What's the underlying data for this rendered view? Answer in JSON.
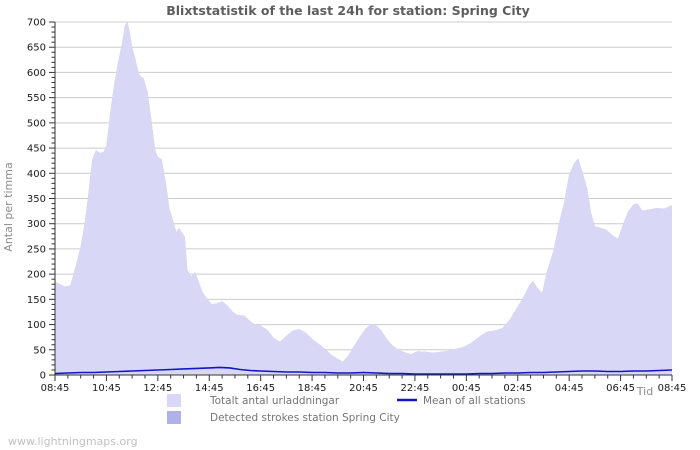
{
  "page": {
    "watermark": "www.lightningmaps.org"
  },
  "chart_data": {
    "type": "area",
    "title": "Blixtstatistik of the last 24h for station: Spring City",
    "xlabel": "Tid",
    "ylabel": "Antal per timma",
    "ylim": [
      0,
      700
    ],
    "y_tick_step": 50,
    "y_minor_step": 10,
    "x_range_hours": [
      0,
      24
    ],
    "x_major_step_hours": 2,
    "x_minor_step_hours": 0.5,
    "x_tick_labels": [
      "08:45",
      "10:45",
      "12:45",
      "14:45",
      "16:45",
      "18:45",
      "20:45",
      "22:45",
      "00:45",
      "02:45",
      "04:45",
      "06:45",
      "08:45"
    ],
    "grid": "horizontal",
    "legend_position": "bottom",
    "colors": {
      "background": "#ffffff",
      "grid": "#cccccc",
      "axis": "#333333",
      "tick_label": "#1a1a1a",
      "title": "#5e5e5e",
      "axis_label": "#8b8b8b",
      "legend_text": "#757575",
      "watermark": "#c0c0c0",
      "area_total": "#d8d8f6",
      "area_detected": "#b1b1e9",
      "mean_line": "#1414cc"
    },
    "legend": [
      {
        "label": "Totalt antal urladdningar",
        "type": "fill",
        "color": "#d8d8f6"
      },
      {
        "label": "Detected strokes station Spring City",
        "type": "fill",
        "color": "#b1b1e9"
      },
      {
        "label": "Mean of all stations",
        "type": "line",
        "color": "#1414cc"
      }
    ],
    "series": [
      {
        "name": "Totalt antal urladdningar",
        "type": "area",
        "color": "#d8d8f6",
        "points": [
          [
            0,
            185
          ],
          [
            0.2,
            180
          ],
          [
            0.4,
            175
          ],
          [
            0.6,
            178
          ],
          [
            0.8,
            215
          ],
          [
            1.0,
            255
          ],
          [
            1.15,
            300
          ],
          [
            1.3,
            360
          ],
          [
            1.45,
            428
          ],
          [
            1.6,
            446
          ],
          [
            1.75,
            440
          ],
          [
            1.9,
            443
          ],
          [
            2.0,
            455
          ],
          [
            2.15,
            520
          ],
          [
            2.3,
            575
          ],
          [
            2.45,
            620
          ],
          [
            2.6,
            655
          ],
          [
            2.72,
            693
          ],
          [
            2.82,
            700
          ],
          [
            2.92,
            676
          ],
          [
            3.0,
            650
          ],
          [
            3.1,
            632
          ],
          [
            3.2,
            610
          ],
          [
            3.3,
            594
          ],
          [
            3.45,
            588
          ],
          [
            3.6,
            560
          ],
          [
            3.75,
            505
          ],
          [
            3.9,
            445
          ],
          [
            4.0,
            432
          ],
          [
            4.15,
            428
          ],
          [
            4.3,
            385
          ],
          [
            4.45,
            330
          ],
          [
            4.6,
            305
          ],
          [
            4.72,
            283
          ],
          [
            4.82,
            292
          ],
          [
            4.95,
            281
          ],
          [
            5.05,
            274
          ],
          [
            5.15,
            208
          ],
          [
            5.3,
            196
          ],
          [
            5.45,
            204
          ],
          [
            5.6,
            183
          ],
          [
            5.75,
            163
          ],
          [
            5.9,
            152
          ],
          [
            6.1,
            140
          ],
          [
            6.3,
            142
          ],
          [
            6.5,
            146
          ],
          [
            6.7,
            138
          ],
          [
            6.9,
            126
          ],
          [
            7.1,
            119
          ],
          [
            7.35,
            118
          ],
          [
            7.55,
            109
          ],
          [
            7.75,
            101
          ],
          [
            8.0,
            98
          ],
          [
            8.25,
            90
          ],
          [
            8.5,
            74
          ],
          [
            8.75,
            66
          ],
          [
            9.0,
            78
          ],
          [
            9.25,
            88
          ],
          [
            9.5,
            91
          ],
          [
            9.75,
            84
          ],
          [
            10.0,
            72
          ],
          [
            10.25,
            62
          ],
          [
            10.5,
            52
          ],
          [
            10.75,
            40
          ],
          [
            11.0,
            32
          ],
          [
            11.2,
            26
          ],
          [
            11.4,
            38
          ],
          [
            11.6,
            55
          ],
          [
            11.85,
            75
          ],
          [
            12.1,
            93
          ],
          [
            12.3,
            101
          ],
          [
            12.5,
            98
          ],
          [
            12.7,
            88
          ],
          [
            12.9,
            72
          ],
          [
            13.1,
            60
          ],
          [
            13.35,
            50
          ],
          [
            13.6,
            45
          ],
          [
            13.85,
            41
          ],
          [
            14.1,
            47
          ],
          [
            14.4,
            46
          ],
          [
            14.7,
            44
          ],
          [
            15.0,
            46
          ],
          [
            15.3,
            48
          ],
          [
            15.6,
            52
          ],
          [
            15.9,
            56
          ],
          [
            16.2,
            64
          ],
          [
            16.5,
            76
          ],
          [
            16.8,
            86
          ],
          [
            17.1,
            88
          ],
          [
            17.4,
            93
          ],
          [
            17.7,
            110
          ],
          [
            17.95,
            132
          ],
          [
            18.2,
            152
          ],
          [
            18.45,
            178
          ],
          [
            18.6,
            186
          ],
          [
            18.8,
            170
          ],
          [
            18.95,
            163
          ],
          [
            19.15,
            208
          ],
          [
            19.4,
            248
          ],
          [
            19.6,
            300
          ],
          [
            19.8,
            340
          ],
          [
            20.0,
            398
          ],
          [
            20.2,
            420
          ],
          [
            20.35,
            430
          ],
          [
            20.5,
            405
          ],
          [
            20.7,
            370
          ],
          [
            20.85,
            322
          ],
          [
            21.0,
            295
          ],
          [
            21.2,
            292
          ],
          [
            21.45,
            288
          ],
          [
            21.7,
            276
          ],
          [
            21.9,
            270
          ],
          [
            22.1,
            300
          ],
          [
            22.3,
            325
          ],
          [
            22.5,
            338
          ],
          [
            22.65,
            340
          ],
          [
            22.85,
            326
          ],
          [
            23.1,
            328
          ],
          [
            23.4,
            331
          ],
          [
            23.7,
            330
          ],
          [
            24.0,
            337
          ]
        ]
      },
      {
        "name": "Detected strokes station Spring City",
        "type": "area",
        "color": "#b1b1e9",
        "note": "visually coincides with the total series and is hidden beneath it",
        "points_ref": 0
      },
      {
        "name": "Mean of all stations",
        "type": "line",
        "color": "#1414cc",
        "points": [
          [
            0,
            3
          ],
          [
            0.5,
            4
          ],
          [
            1,
            5
          ],
          [
            1.5,
            5
          ],
          [
            2,
            6
          ],
          [
            2.5,
            7
          ],
          [
            3,
            8
          ],
          [
            3.5,
            9
          ],
          [
            4,
            10
          ],
          [
            4.5,
            11
          ],
          [
            5,
            12
          ],
          [
            5.5,
            13
          ],
          [
            6,
            14
          ],
          [
            6.4,
            15
          ],
          [
            6.8,
            14
          ],
          [
            7.2,
            11
          ],
          [
            7.6,
            9
          ],
          [
            8,
            8
          ],
          [
            8.5,
            7
          ],
          [
            9,
            6
          ],
          [
            9.5,
            6
          ],
          [
            10,
            5
          ],
          [
            10.5,
            5
          ],
          [
            11,
            4
          ],
          [
            11.5,
            4
          ],
          [
            12,
            5
          ],
          [
            12.5,
            4
          ],
          [
            13,
            3
          ],
          [
            13.5,
            3
          ],
          [
            14,
            2
          ],
          [
            14.5,
            2
          ],
          [
            15,
            2
          ],
          [
            15.5,
            2
          ],
          [
            16,
            2
          ],
          [
            16.5,
            3
          ],
          [
            17,
            3
          ],
          [
            17.5,
            4
          ],
          [
            18,
            4
          ],
          [
            18.5,
            5
          ],
          [
            19,
            5
          ],
          [
            19.5,
            6
          ],
          [
            20,
            7
          ],
          [
            20.5,
            8
          ],
          [
            21,
            8
          ],
          [
            21.5,
            7
          ],
          [
            22,
            7
          ],
          [
            22.5,
            8
          ],
          [
            23,
            8
          ],
          [
            23.5,
            9
          ],
          [
            24,
            10
          ]
        ]
      }
    ]
  }
}
